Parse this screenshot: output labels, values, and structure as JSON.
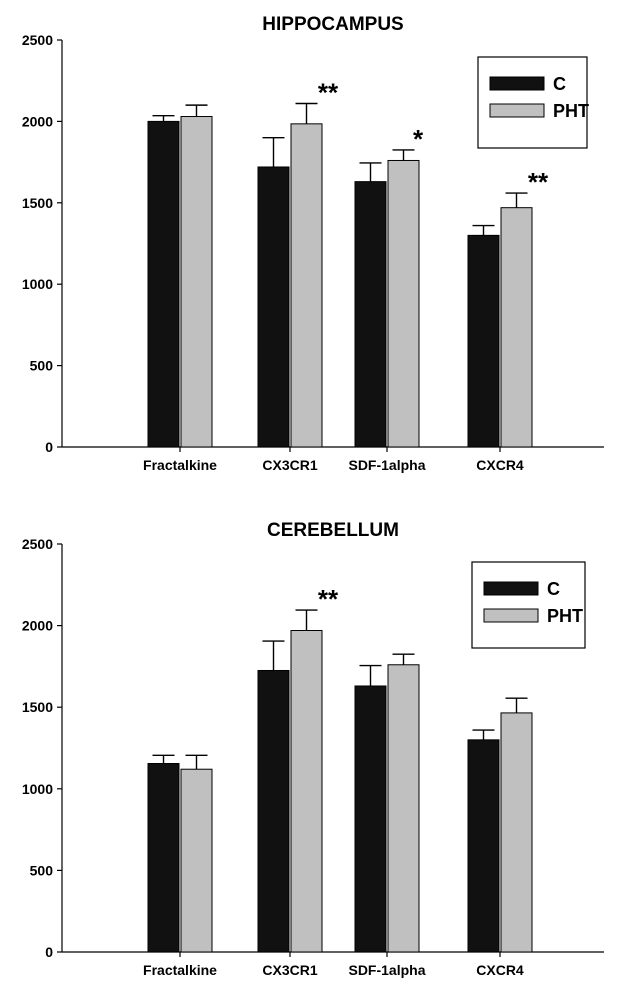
{
  "chart_data": [
    {
      "type": "bar",
      "title": "HIPPOCAMPUS",
      "xlabel": "",
      "ylabel": "",
      "categories": [
        "Fractalkine",
        "CX3CR1",
        "SDF-1alpha",
        "CXCR4"
      ],
      "ylim": [
        0,
        2500
      ],
      "yticks": [
        "0",
        "500",
        "1000",
        "1500",
        "2000",
        "2500"
      ],
      "series": [
        {
          "name": "C",
          "color": "#111111",
          "values": [
            2000,
            1720,
            1630,
            1300
          ],
          "errors": [
            35,
            180,
            115,
            60
          ]
        },
        {
          "name": "PHT",
          "color": "#c0c0c0",
          "values": [
            2030,
            1985,
            1760,
            1470
          ],
          "errors": [
            70,
            125,
            65,
            90
          ]
        }
      ],
      "annotations": [
        {
          "category": "CX3CR1",
          "text": "**"
        },
        {
          "category": "SDF-1alpha",
          "text": "*"
        },
        {
          "category": "CXCR4",
          "text": "**"
        }
      ],
      "legend": "top-right",
      "grid": false
    },
    {
      "type": "bar",
      "title": "CEREBELLUM",
      "xlabel": "",
      "ylabel": "",
      "categories": [
        "Fractalkine",
        "CX3CR1",
        "SDF-1alpha",
        "CXCR4"
      ],
      "ylim": [
        0,
        2500
      ],
      "yticks": [
        "0",
        "500",
        "1000",
        "1500",
        "2000",
        "2500"
      ],
      "series": [
        {
          "name": "C",
          "color": "#111111",
          "values": [
            1155,
            1725,
            1630,
            1300
          ],
          "errors": [
            50,
            180,
            125,
            60
          ]
        },
        {
          "name": "PHT",
          "color": "#c0c0c0",
          "values": [
            1120,
            1970,
            1760,
            1465
          ],
          "errors": [
            85,
            125,
            65,
            90
          ]
        }
      ],
      "annotations": [
        {
          "category": "CX3CR1",
          "text": "**"
        }
      ],
      "legend": "top-right",
      "grid": false
    }
  ]
}
